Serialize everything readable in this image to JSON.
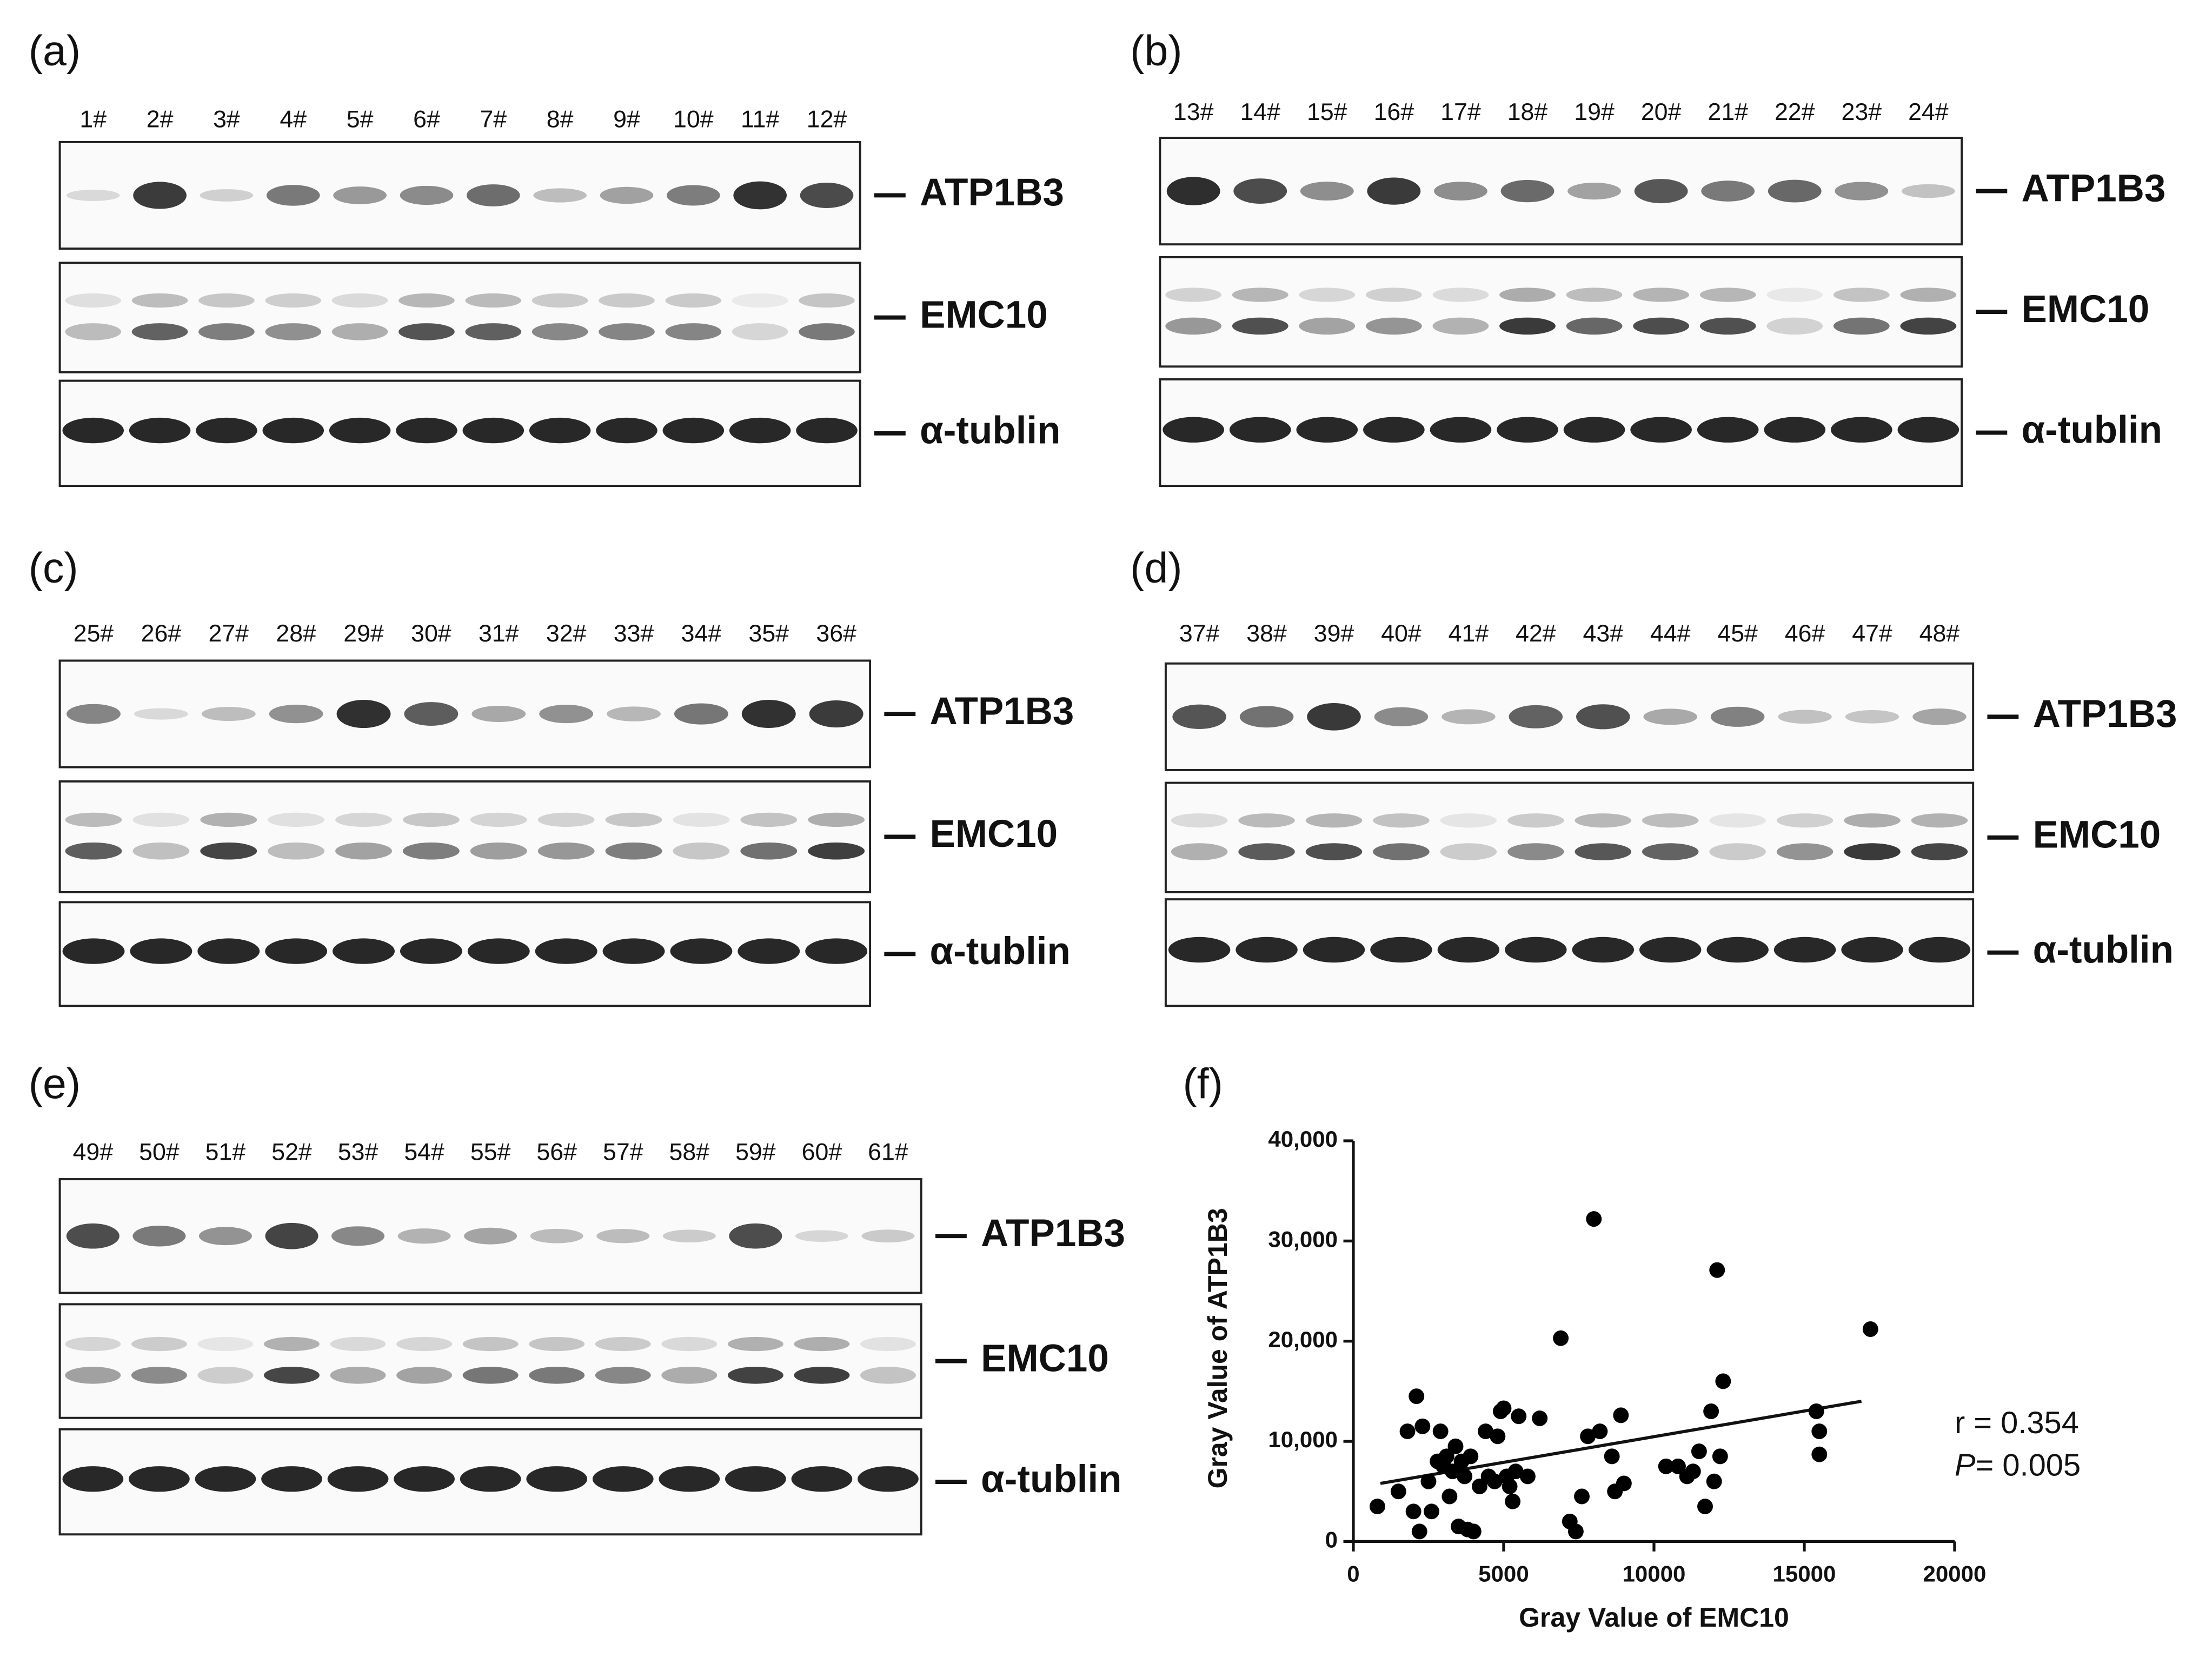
{
  "panels": [
    {
      "label": "(a)",
      "lanes": [
        "1#",
        "2#",
        "3#",
        "4#",
        "5#",
        "6#",
        "7#",
        "8#",
        "9#",
        "10#",
        "11#",
        "12#"
      ],
      "rows": [
        "ATP1B3",
        "EMC10",
        "α-tublin"
      ]
    },
    {
      "label": "(b)",
      "lanes": [
        "13#",
        "14#",
        "15#",
        "16#",
        "17#",
        "18#",
        "19#",
        "20#",
        "21#",
        "22#",
        "23#",
        "24#"
      ],
      "rows": [
        "ATP1B3",
        "EMC10",
        "α-tublin"
      ]
    },
    {
      "label": "(c)",
      "lanes": [
        "25#",
        "26#",
        "27#",
        "28#",
        "29#",
        "30#",
        "31#",
        "32#",
        "33#",
        "34#",
        "35#",
        "36#"
      ],
      "rows": [
        "ATP1B3",
        "EMC10",
        "α-tublin"
      ]
    },
    {
      "label": "(d)",
      "lanes": [
        "37#",
        "38#",
        "39#",
        "40#",
        "41#",
        "42#",
        "43#",
        "44#",
        "45#",
        "46#",
        "47#",
        "48#"
      ],
      "rows": [
        "ATP1B3",
        "EMC10",
        "α-tublin"
      ]
    },
    {
      "label": "(e)",
      "lanes": [
        "49#",
        "50#",
        "51#",
        "52#",
        "53#",
        "54#",
        "55#",
        "56#",
        "57#",
        "58#",
        "59#",
        "60#",
        "61#"
      ],
      "rows": [
        "ATP1B3",
        "EMC10",
        "α-tublin"
      ]
    }
  ],
  "chart_data": {
    "type": "scatter",
    "panel_label": "(f)",
    "x_label": "Gray Value of EMC10",
    "y_label": "Gray Value of ATP1B3",
    "xlim": [
      0,
      20000
    ],
    "ylim": [
      0,
      40000
    ],
    "xticks": [
      0,
      5000,
      10000,
      15000,
      20000
    ],
    "yticks": [
      0,
      {
        "value": 10000,
        "label": "10,000"
      },
      {
        "value": 20000,
        "label": "20,000"
      },
      {
        "value": 30000,
        "label": "30,000"
      },
      {
        "value": 40000,
        "label": "40,000"
      }
    ],
    "color": "#000000",
    "x": [
      800,
      1500,
      1800,
      2000,
      2100,
      2200,
      2300,
      2500,
      2600,
      2800,
      2900,
      3000,
      3100,
      3200,
      3300,
      3400,
      3500,
      3600,
      3700,
      3800,
      3900,
      4000,
      4200,
      4400,
      4500,
      4700,
      4800,
      4900,
      5000,
      5100,
      5200,
      5300,
      5400,
      5500,
      5800,
      6200,
      6900,
      7200,
      7400,
      7600,
      7800,
      8000,
      8200,
      8600,
      8700,
      8900,
      9000,
      10400,
      10800,
      11100,
      11300,
      11500,
      11700,
      11900,
      12000,
      12100,
      12200,
      12300,
      15400,
      15500,
      15500,
      17200
    ],
    "y": [
      3500,
      5000,
      11000,
      3000,
      14500,
      1000,
      11500,
      6000,
      3000,
      8000,
      11000,
      7500,
      8500,
      4500,
      7000,
      9500,
      1500,
      8000,
      6500,
      1200,
      8500,
      1000,
      5500,
      11000,
      6500,
      6000,
      10500,
      13000,
      13300,
      6500,
      5500,
      4000,
      7000,
      12500,
      6500,
      12300,
      20300,
      2000,
      1000,
      4500,
      10500,
      32200,
      11000,
      8500,
      5000,
      12600,
      5800,
      7500,
      7500,
      6500,
      7000,
      9000,
      3500,
      13000,
      6000,
      27100,
      8500,
      16000,
      13000,
      11000,
      8700,
      21200
    ],
    "trend_line": {
      "x": [
        900,
        16900
      ],
      "y": [
        5800,
        14000
      ]
    },
    "r_text": "r = 0.354",
    "p_label": "P",
    "p_value": "= 0.005"
  }
}
